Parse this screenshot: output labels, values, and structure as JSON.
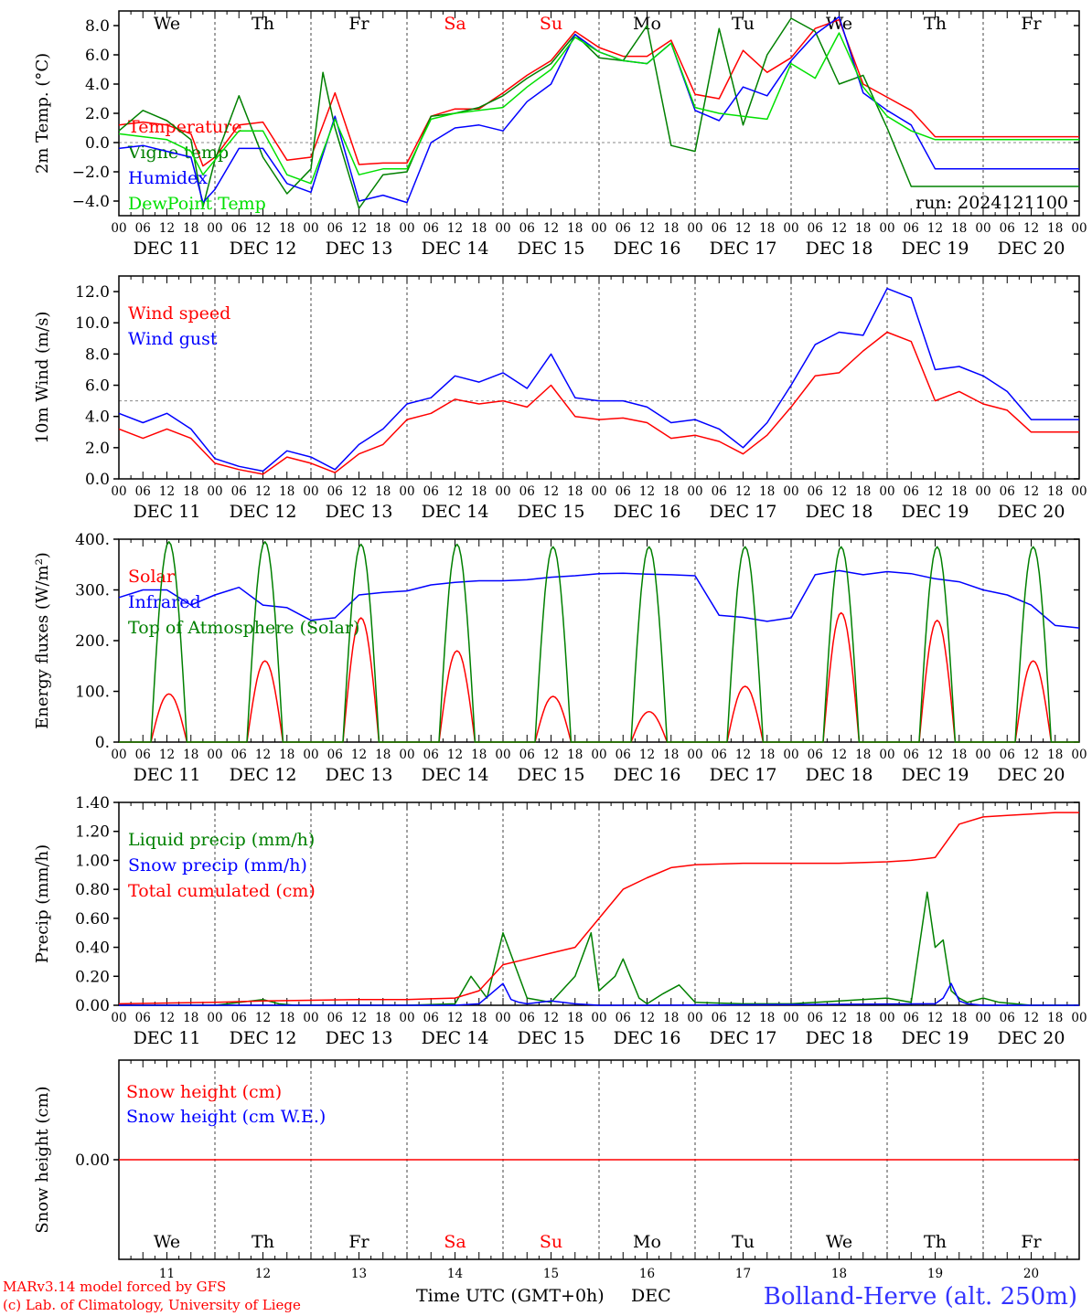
{
  "run_label": "run: 2024121100",
  "footer": {
    "model": "MARv3.14 model forced by GFS",
    "credit": "(c) Lab. of Climatology, University of Liege",
    "xlabel": "Time UTC (GMT+0h)",
    "month": "DEC",
    "station": "Bolland-Herve (alt. 250m)"
  },
  "colors": {
    "red": "#ff0000",
    "green": "#008000",
    "blue": "#0000ff",
    "lightgreen": "#00e000",
    "weekend": "#ff0000",
    "grid": "#444444"
  },
  "days": {
    "weekday": [
      "We",
      "Th",
      "Fr",
      "Sa",
      "Su",
      "Mo",
      "Tu",
      "We",
      "Th",
      "Fr"
    ],
    "weekend_flags": [
      false,
      false,
      false,
      true,
      true,
      false,
      false,
      false,
      false,
      false
    ],
    "dates": [
      "DEC 11",
      "DEC 12",
      "DEC 13",
      "DEC 14",
      "DEC 15",
      "DEC 16",
      "DEC 17",
      "DEC 18",
      "DEC 19",
      "DEC 20"
    ],
    "day_numbers": [
      "11",
      "12",
      "13",
      "14",
      "15",
      "16",
      "17",
      "18",
      "19",
      "20"
    ],
    "hour_ticks": [
      "00",
      "06",
      "12",
      "18"
    ],
    "final_tick": "00"
  },
  "chart_data": [
    {
      "type": "line",
      "ylabel": "2m Temp. (°C)",
      "ylim": [
        -5,
        9
      ],
      "yticks": [
        -4,
        -2,
        0,
        2,
        4,
        6,
        8
      ],
      "ytick_labels": [
        "−4.0",
        "−2.0",
        "0.0",
        "2.0",
        "4.0",
        "6.0",
        "8.0"
      ],
      "ref_line": 0,
      "x_unit": "hours since DEC 11 00 UTC",
      "series": [
        {
          "name": "Temperature",
          "color": "red",
          "x": [
            0,
            6,
            12,
            18,
            21,
            24,
            30,
            36,
            42,
            48,
            54,
            60,
            66,
            72,
            78,
            84,
            90,
            96,
            102,
            108,
            114,
            120,
            126,
            132,
            138,
            144,
            150,
            156,
            162,
            168,
            174,
            180,
            186,
            192,
            198,
            204,
            210,
            216,
            222,
            228,
            234,
            240
          ],
          "y": [
            1.2,
            1.4,
            1.2,
            0.6,
            -1.6,
            -1.0,
            1.2,
            1.4,
            -1.2,
            -1.0,
            3.4,
            -1.5,
            -1.4,
            -1.4,
            1.8,
            2.3,
            2.3,
            3.4,
            4.6,
            5.6,
            7.6,
            6.5,
            5.9,
            5.9,
            7.0,
            3.3,
            3.0,
            6.3,
            4.8,
            5.8,
            7.8,
            8.4,
            4.0,
            3.1,
            2.2,
            0.4,
            0.4,
            0.4,
            0.4,
            0.4,
            0.4,
            0.4
          ]
        },
        {
          "name": "Vigne temp",
          "color": "green",
          "x": [
            0,
            6,
            12,
            18,
            21,
            24,
            30,
            36,
            42,
            48,
            51,
            54,
            60,
            66,
            72,
            78,
            84,
            90,
            96,
            102,
            108,
            114,
            120,
            126,
            132,
            138,
            144,
            150,
            156,
            162,
            168,
            174,
            180,
            186,
            192,
            198,
            204,
            210,
            216,
            222,
            228,
            234,
            240
          ],
          "y": [
            0.8,
            2.2,
            1.5,
            0.2,
            -4.4,
            -1.2,
            3.2,
            -1.0,
            -3.5,
            -1.8,
            4.8,
            1.0,
            -4.5,
            -2.2,
            -2.0,
            1.8,
            2.0,
            2.4,
            3.2,
            4.4,
            5.4,
            7.4,
            5.8,
            5.6,
            8.0,
            -0.2,
            -0.6,
            7.8,
            1.2,
            6.0,
            8.5,
            7.6,
            4.0,
            4.6,
            1.0,
            -3.0,
            -3.0,
            -3.0,
            -3.0,
            -3.0,
            -3.0,
            -3.0,
            -3.0
          ]
        },
        {
          "name": "Humidex",
          "color": "blue",
          "x": [
            0,
            6,
            12,
            18,
            21,
            24,
            30,
            36,
            42,
            48,
            54,
            60,
            66,
            72,
            78,
            84,
            90,
            96,
            102,
            108,
            114,
            120,
            126,
            132,
            138,
            144,
            150,
            156,
            162,
            168,
            174,
            180,
            186,
            192,
            198,
            204,
            210,
            216,
            222,
            228,
            234,
            240
          ],
          "y": [
            -0.4,
            -0.2,
            -0.6,
            -1.0,
            -4.1,
            -3.2,
            -0.4,
            -0.4,
            -2.8,
            -3.4,
            1.8,
            -4.0,
            -3.6,
            -4.1,
            0.0,
            1.0,
            1.2,
            0.8,
            2.8,
            4.0,
            7.4,
            6.2,
            5.6,
            5.4,
            6.8,
            2.2,
            1.5,
            3.8,
            3.2,
            5.6,
            7.4,
            8.6,
            3.4,
            2.2,
            1.2,
            -1.8,
            -1.8,
            -1.8,
            -1.8,
            -1.8,
            -1.8,
            -1.8
          ]
        },
        {
          "name": "DewPoint Temp",
          "color": "lightgreen",
          "x": [
            0,
            6,
            12,
            18,
            21,
            24,
            30,
            36,
            42,
            48,
            54,
            60,
            66,
            72,
            78,
            84,
            90,
            96,
            102,
            108,
            114,
            120,
            126,
            132,
            138,
            144,
            150,
            156,
            162,
            168,
            174,
            180,
            186,
            192,
            198,
            204,
            210,
            216,
            222,
            228,
            234,
            240
          ],
          "y": [
            0.6,
            0.4,
            0.2,
            -0.6,
            -2.2,
            -1.2,
            0.8,
            0.8,
            -2.2,
            -2.8,
            1.6,
            -2.2,
            -1.8,
            -1.8,
            1.6,
            2.0,
            2.2,
            2.4,
            3.8,
            5.0,
            7.2,
            6.2,
            5.6,
            5.4,
            6.8,
            2.4,
            2.0,
            1.8,
            1.6,
            5.4,
            4.4,
            7.5,
            3.8,
            1.8,
            0.8,
            0.2,
            0.2,
            0.2,
            0.2,
            0.2,
            0.2,
            0.2
          ]
        }
      ]
    },
    {
      "type": "line",
      "ylabel": "10m Wind (m/s)",
      "ylim": [
        0,
        13
      ],
      "yticks": [
        0,
        2,
        4,
        6,
        8,
        10,
        12
      ],
      "ytick_labels": [
        "0.0",
        "2.0",
        "4.0",
        "6.0",
        "8.0",
        "10.0",
        "12.0"
      ],
      "ref_line": 5,
      "x_unit": "hours since DEC 11 00 UTC",
      "series": [
        {
          "name": "Wind speed",
          "color": "red",
          "x": [
            0,
            6,
            12,
            18,
            24,
            30,
            36,
            42,
            48,
            54,
            60,
            66,
            72,
            78,
            84,
            90,
            96,
            102,
            108,
            114,
            120,
            126,
            132,
            138,
            144,
            150,
            156,
            162,
            168,
            174,
            180,
            186,
            192,
            198,
            204,
            210,
            216,
            222,
            228,
            234,
            240
          ],
          "y": [
            3.2,
            2.6,
            3.2,
            2.6,
            1.0,
            0.6,
            0.3,
            1.4,
            1.0,
            0.4,
            1.6,
            2.2,
            3.8,
            4.2,
            5.1,
            4.8,
            5.0,
            4.6,
            6.0,
            4.0,
            3.8,
            3.9,
            3.6,
            2.6,
            2.8,
            2.4,
            1.6,
            2.8,
            4.6,
            6.6,
            6.8,
            8.2,
            9.4,
            8.8,
            5.0,
            5.6,
            4.8,
            4.4,
            3.0,
            3.0,
            3.0
          ]
        },
        {
          "name": "Wind gust",
          "color": "blue",
          "x": [
            0,
            6,
            12,
            18,
            24,
            30,
            36,
            42,
            48,
            54,
            60,
            66,
            72,
            78,
            84,
            90,
            96,
            102,
            108,
            114,
            120,
            126,
            132,
            138,
            144,
            150,
            156,
            162,
            168,
            174,
            180,
            186,
            192,
            198,
            204,
            210,
            216,
            222,
            228,
            234,
            240
          ],
          "y": [
            4.2,
            3.6,
            4.2,
            3.2,
            1.3,
            0.8,
            0.5,
            1.8,
            1.4,
            0.6,
            2.2,
            3.2,
            4.8,
            5.2,
            6.6,
            6.2,
            6.8,
            5.8,
            8.0,
            5.2,
            5.0,
            5.0,
            4.6,
            3.6,
            3.8,
            3.2,
            2.0,
            3.6,
            6.0,
            8.6,
            9.4,
            9.2,
            12.2,
            11.6,
            7.0,
            7.2,
            6.6,
            5.6,
            3.8,
            3.8,
            3.8
          ]
        }
      ]
    },
    {
      "type": "line",
      "ylabel": "Energy fluxes (W/m²)",
      "ylim": [
        0,
        400
      ],
      "yticks": [
        0,
        100,
        200,
        300,
        400
      ],
      "ytick_labels": [
        "0.",
        "100.",
        "200.",
        "300.",
        "400."
      ],
      "x_unit": "hours since DEC 11 00 UTC",
      "series": [
        {
          "name": "Solar",
          "color": "red",
          "daily_peaks": [
            95,
            160,
            245,
            180,
            90,
            60,
            110,
            255,
            240,
            160
          ],
          "x": [],
          "y": []
        },
        {
          "name": "Infrared",
          "color": "blue",
          "x": [
            0,
            6,
            12,
            18,
            24,
            30,
            36,
            42,
            48,
            54,
            60,
            66,
            72,
            78,
            84,
            90,
            96,
            102,
            108,
            114,
            120,
            126,
            132,
            138,
            144,
            150,
            156,
            162,
            168,
            174,
            180,
            186,
            192,
            198,
            204,
            210,
            216,
            222,
            228,
            234,
            240
          ],
          "y": [
            285,
            300,
            300,
            270,
            290,
            305,
            270,
            265,
            240,
            245,
            290,
            295,
            298,
            310,
            315,
            318,
            318,
            320,
            325,
            328,
            332,
            333,
            331,
            330,
            328,
            250,
            246,
            238,
            245,
            330,
            338,
            330,
            336,
            332,
            322,
            316,
            300,
            290,
            270,
            230,
            225
          ]
        },
        {
          "name": "Top of Atmosphere (Solar)",
          "color": "green",
          "daily_peaks": [
            395,
            395,
            390,
            390,
            385,
            385,
            385,
            385,
            385,
            385
          ],
          "x": [],
          "y": []
        }
      ]
    },
    {
      "type": "line",
      "ylabel": "Precip (mm/h)",
      "ylim": [
        0,
        1.4
      ],
      "yticks": [
        0,
        0.2,
        0.4,
        0.6,
        0.8,
        1.0,
        1.2,
        1.4
      ],
      "ytick_labels": [
        "0.00",
        "0.20",
        "0.40",
        "0.60",
        "0.80",
        "1.00",
        "1.20",
        "1.40"
      ],
      "x_unit": "hours since DEC 11 00 UTC",
      "series": [
        {
          "name": "Liquid precip (mm/h)",
          "color": "green",
          "x": [
            0,
            24,
            36,
            40,
            44,
            48,
            72,
            84,
            88,
            92,
            96,
            102,
            108,
            114,
            118,
            120,
            124,
            126,
            130,
            132,
            136,
            140,
            144,
            156,
            168,
            192,
            198,
            202,
            204,
            206,
            208,
            210,
            212,
            216,
            220,
            224,
            228,
            234,
            240
          ],
          "y": [
            0,
            0,
            0.04,
            0.01,
            0,
            0,
            0,
            0.01,
            0.2,
            0.05,
            0.5,
            0.05,
            0.02,
            0.2,
            0.5,
            0.1,
            0.2,
            0.32,
            0.05,
            0.01,
            0.08,
            0.14,
            0.02,
            0.01,
            0.01,
            0.05,
            0.02,
            0.78,
            0.4,
            0.45,
            0.1,
            0.05,
            0.02,
            0.05,
            0.02,
            0.01,
            0,
            0,
            0
          ]
        },
        {
          "name": "Snow precip (mm/h)",
          "color": "blue",
          "x": [
            0,
            84,
            90,
            96,
            98,
            100,
            102,
            108,
            114,
            120,
            132,
            204,
            206,
            208,
            210,
            212,
            216,
            240
          ],
          "y": [
            0,
            0,
            0.01,
            0.15,
            0.04,
            0.02,
            0.01,
            0.03,
            0.01,
            0,
            0,
            0.01,
            0.05,
            0.15,
            0.03,
            0.01,
            0,
            0
          ]
        },
        {
          "name": "Total cumulated (cm)",
          "color": "red",
          "x": [
            0,
            24,
            36,
            48,
            60,
            72,
            78,
            84,
            90,
            96,
            102,
            108,
            114,
            120,
            126,
            132,
            138,
            144,
            156,
            168,
            180,
            192,
            198,
            204,
            210,
            216,
            222,
            228,
            234,
            240
          ],
          "y": [
            0.01,
            0.02,
            0.03,
            0.035,
            0.04,
            0.04,
            0.045,
            0.05,
            0.1,
            0.28,
            0.32,
            0.36,
            0.4,
            0.6,
            0.8,
            0.88,
            0.95,
            0.97,
            0.98,
            0.98,
            0.98,
            0.99,
            1.0,
            1.02,
            1.25,
            1.3,
            1.31,
            1.32,
            1.33,
            1.33
          ]
        }
      ]
    },
    {
      "type": "line",
      "ylabel": "Snow height (cm)",
      "ylim": [
        -1,
        1
      ],
      "yticks": [
        0
      ],
      "ytick_labels": [
        "0.00"
      ],
      "x_unit": "hours since DEC 11 00 UTC",
      "series": [
        {
          "name": "Snow height (cm)",
          "color": "red",
          "x": [
            0,
            240
          ],
          "y": [
            0,
            0
          ]
        },
        {
          "name": "Snow height (cm W.E.)",
          "color": "blue",
          "x": [],
          "y": []
        }
      ]
    }
  ]
}
